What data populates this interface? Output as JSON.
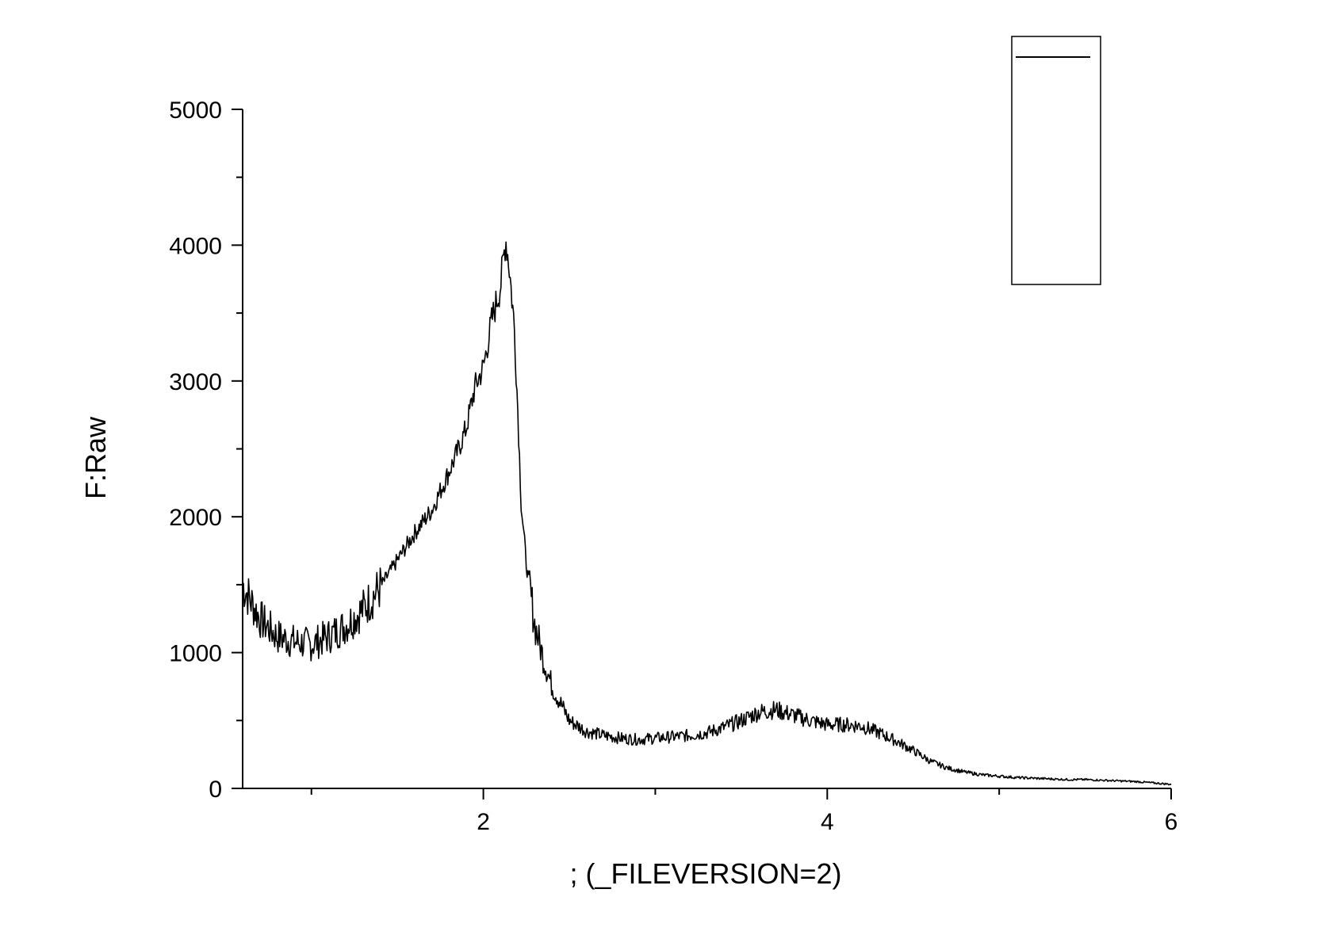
{
  "chart_data": {
    "type": "line",
    "title": "",
    "xlabel": "; (_FILEVERSION=2)",
    "ylabel": "F:Raw",
    "xlim": [
      0.6,
      6.0
    ],
    "ylim": [
      0,
      5000
    ],
    "x_major_ticks": [
      2,
      4,
      6
    ],
    "x_minor_ticks": [
      1,
      3,
      5
    ],
    "y_major_ticks": [
      0,
      1000,
      2000,
      3000,
      4000,
      5000
    ],
    "x_tick_labels": [
      "2",
      "4",
      "6"
    ],
    "y_tick_labels": [
      "0",
      "1000",
      "2000",
      "3000",
      "4000",
      "5000"
    ],
    "grid": false,
    "legend": "top-right",
    "line_color": "#000000",
    "series": [
      {
        "x": [
          0.6,
          0.7,
          0.8,
          0.9,
          1.0,
          1.1,
          1.2,
          1.3,
          1.4,
          1.5,
          1.6,
          1.7,
          1.8,
          1.85,
          1.9,
          1.95,
          2.0,
          2.05,
          2.1,
          2.13,
          2.15,
          2.18,
          2.2,
          2.22,
          2.25,
          2.3,
          2.35,
          2.4,
          2.5,
          2.6,
          2.7,
          2.8,
          2.9,
          3.0,
          3.1,
          3.2,
          3.3,
          3.4,
          3.5,
          3.6,
          3.7,
          3.8,
          3.9,
          4.0,
          4.1,
          4.2,
          4.3,
          4.4,
          4.5,
          4.6,
          4.7,
          4.8,
          4.9,
          5.0,
          5.1,
          5.2,
          5.3,
          5.4,
          5.5,
          5.6,
          5.7,
          5.8,
          5.9,
          6.0
        ],
        "y": [
          1500,
          1250,
          1120,
          1080,
          1060,
          1120,
          1200,
          1320,
          1480,
          1680,
          1880,
          2050,
          2330,
          2480,
          2650,
          2950,
          3100,
          3450,
          3700,
          4050,
          3850,
          3400,
          2800,
          2100,
          1650,
          1200,
          950,
          750,
          500,
          420,
          390,
          370,
          360,
          370,
          380,
          390,
          410,
          450,
          500,
          560,
          580,
          540,
          500,
          470,
          470,
          460,
          410,
          350,
          280,
          200,
          150,
          120,
          100,
          90,
          80,
          75,
          70,
          65,
          65,
          60,
          55,
          50,
          40,
          30
        ]
      }
    ]
  }
}
